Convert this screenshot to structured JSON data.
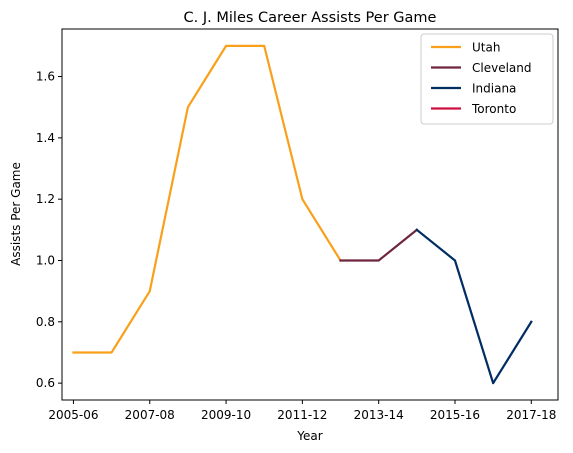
{
  "chart_data": {
    "type": "line",
    "title": "C. J. Miles Career Assists Per Game",
    "xlabel": "Year",
    "ylabel": "Assists Per Game",
    "x_tick_labels": [
      "2005-06",
      "2007-08",
      "2009-10",
      "2011-12",
      "2013-14",
      "2015-16",
      "2017-18"
    ],
    "x_tick_index": [
      0,
      2,
      4,
      6,
      8,
      10,
      12
    ],
    "xlim": [
      -0.3,
      12.7
    ],
    "y_ticks": [
      0.6,
      0.8,
      1.0,
      1.2,
      1.4,
      1.6
    ],
    "y_tick_labels": [
      "0.6",
      "0.8",
      "1.0",
      "1.2",
      "1.4",
      "1.6"
    ],
    "ylim": [
      0.545,
      1.755
    ],
    "grid": false,
    "legend_position": "top-right",
    "series": [
      {
        "name": "Utah",
        "color": "#F9A01B",
        "x": [
          0,
          1,
          2,
          3,
          4,
          5,
          6,
          7
        ],
        "values": [
          0.7,
          0.7,
          0.9,
          1.5,
          1.7,
          1.7,
          1.2,
          1.0
        ]
      },
      {
        "name": "Cleveland",
        "color": "#6F263D",
        "x": [
          7,
          8,
          9
        ],
        "values": [
          1.0,
          1.0,
          1.1
        ]
      },
      {
        "name": "Indiana",
        "color": "#002D62",
        "x": [
          9,
          10,
          11,
          12
        ],
        "values": [
          1.1,
          1.0,
          0.6,
          0.8
        ]
      },
      {
        "name": "Toronto",
        "color": "#CE1141",
        "x": [
          12
        ],
        "values": [
          0.8
        ]
      }
    ]
  }
}
